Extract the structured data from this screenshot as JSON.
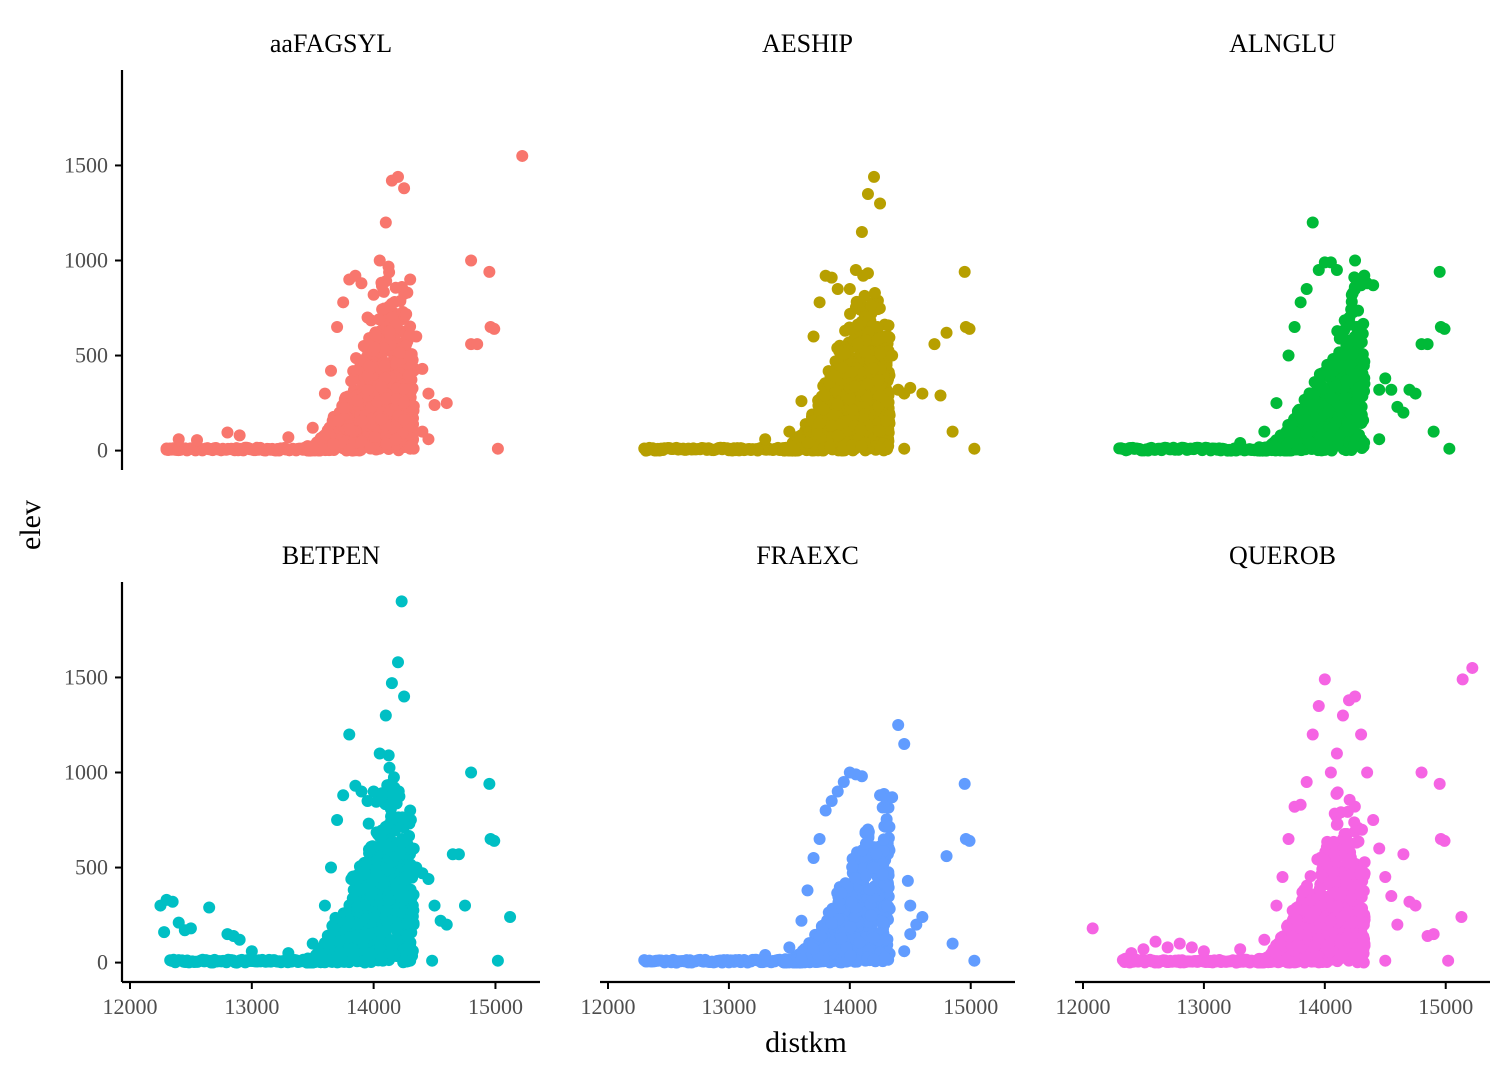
{
  "chart_data": {
    "type": "scatter",
    "xlabel": "distkm",
    "ylabel": "elev",
    "xlim": [
      12000,
      15300
    ],
    "ylim": [
      -60,
      1960
    ],
    "x_ticks": [
      12000,
      13000,
      14000,
      15000
    ],
    "y_ticks": [
      0,
      500,
      1000,
      1500
    ],
    "grid": false,
    "legend": "none",
    "facets": [
      {
        "name": "aaFAGSYL",
        "color": "#F8766D",
        "points": [
          [
            12300,
            5
          ],
          [
            12400,
            60
          ],
          [
            12550,
            55
          ],
          [
            12800,
            95
          ],
          [
            12900,
            80
          ],
          [
            13300,
            70
          ],
          [
            13500,
            120
          ],
          [
            13600,
            300
          ],
          [
            13650,
            420
          ],
          [
            13700,
            650
          ],
          [
            13750,
            780
          ],
          [
            13800,
            900
          ],
          [
            13850,
            920
          ],
          [
            13900,
            880
          ],
          [
            13950,
            700
          ],
          [
            14000,
            820
          ],
          [
            14050,
            1000
          ],
          [
            14100,
            1200
          ],
          [
            14150,
            1420
          ],
          [
            14200,
            1440
          ],
          [
            14250,
            1380
          ],
          [
            14300,
            900
          ],
          [
            14350,
            600
          ],
          [
            14400,
            430
          ],
          [
            14450,
            300
          ],
          [
            14500,
            240
          ],
          [
            14600,
            250
          ],
          [
            14400,
            100
          ],
          [
            14300,
            10
          ],
          [
            14450,
            60
          ],
          [
            14800,
            560
          ],
          [
            14850,
            560
          ],
          [
            14800,
            1000
          ],
          [
            14950,
            940
          ],
          [
            14960,
            650
          ],
          [
            14990,
            640
          ],
          [
            15020,
            10
          ],
          [
            15220,
            1550
          ]
        ]
      },
      {
        "name": "AESHIP",
        "color": "#B79F00",
        "points": [
          [
            13300,
            60
          ],
          [
            13500,
            100
          ],
          [
            13600,
            260
          ],
          [
            13700,
            600
          ],
          [
            13750,
            780
          ],
          [
            13800,
            920
          ],
          [
            13850,
            910
          ],
          [
            13900,
            850
          ],
          [
            14000,
            850
          ],
          [
            14050,
            950
          ],
          [
            14100,
            1150
          ],
          [
            14150,
            1350
          ],
          [
            14200,
            1440
          ],
          [
            14250,
            1300
          ],
          [
            14300,
            600
          ],
          [
            14350,
            500
          ],
          [
            14400,
            320
          ],
          [
            14450,
            300
          ],
          [
            14500,
            330
          ],
          [
            14600,
            300
          ],
          [
            14700,
            560
          ],
          [
            14750,
            290
          ],
          [
            14800,
            620
          ],
          [
            14850,
            100
          ],
          [
            14950,
            940
          ],
          [
            14960,
            650
          ],
          [
            14990,
            640
          ],
          [
            14250,
            10
          ],
          [
            14450,
            10
          ],
          [
            15030,
            10
          ]
        ]
      },
      {
        "name": "ALNGLU",
        "color": "#00BA38",
        "points": [
          [
            13300,
            40
          ],
          [
            13500,
            100
          ],
          [
            13600,
            250
          ],
          [
            13700,
            500
          ],
          [
            13750,
            650
          ],
          [
            13800,
            780
          ],
          [
            13850,
            850
          ],
          [
            13900,
            1200
          ],
          [
            13950,
            950
          ],
          [
            14000,
            990
          ],
          [
            14050,
            990
          ],
          [
            14100,
            950
          ],
          [
            14150,
            600
          ],
          [
            14200,
            450
          ],
          [
            14250,
            1000
          ],
          [
            14300,
            870
          ],
          [
            14350,
            880
          ],
          [
            14400,
            870
          ],
          [
            14450,
            320
          ],
          [
            14500,
            380
          ],
          [
            14550,
            320
          ],
          [
            14600,
            230
          ],
          [
            14650,
            200
          ],
          [
            14700,
            320
          ],
          [
            14750,
            300
          ],
          [
            14800,
            560
          ],
          [
            14850,
            560
          ],
          [
            14900,
            100
          ],
          [
            14950,
            940
          ],
          [
            14960,
            650
          ],
          [
            14990,
            640
          ],
          [
            14450,
            60
          ],
          [
            15030,
            10
          ]
        ]
      },
      {
        "name": "BETPEN",
        "color": "#00BFC4",
        "points": [
          [
            12250,
            300
          ],
          [
            12300,
            330
          ],
          [
            12350,
            320
          ],
          [
            12280,
            160
          ],
          [
            12400,
            210
          ],
          [
            12450,
            170
          ],
          [
            12500,
            180
          ],
          [
            12650,
            290
          ],
          [
            12800,
            150
          ],
          [
            12850,
            140
          ],
          [
            12900,
            120
          ],
          [
            13000,
            60
          ],
          [
            13300,
            50
          ],
          [
            13500,
            100
          ],
          [
            13600,
            300
          ],
          [
            13650,
            500
          ],
          [
            13700,
            750
          ],
          [
            13750,
            880
          ],
          [
            13800,
            1200
          ],
          [
            13850,
            930
          ],
          [
            13900,
            900
          ],
          [
            13950,
            850
          ],
          [
            14000,
            900
          ],
          [
            14050,
            1100
          ],
          [
            14100,
            1300
          ],
          [
            14150,
            1470
          ],
          [
            14200,
            1580
          ],
          [
            14230,
            1900
          ],
          [
            14250,
            1400
          ],
          [
            14300,
            800
          ],
          [
            14350,
            500
          ],
          [
            14400,
            470
          ],
          [
            14450,
            440
          ],
          [
            14500,
            300
          ],
          [
            14550,
            220
          ],
          [
            14600,
            200
          ],
          [
            14650,
            570
          ],
          [
            14700,
            570
          ],
          [
            14750,
            300
          ],
          [
            14800,
            1000
          ],
          [
            14950,
            940
          ],
          [
            14960,
            650
          ],
          [
            14990,
            640
          ],
          [
            14300,
            10
          ],
          [
            14480,
            10
          ],
          [
            15020,
            10
          ],
          [
            15120,
            240
          ]
        ]
      },
      {
        "name": "FRAEXC",
        "color": "#619CFF",
        "points": [
          [
            13300,
            40
          ],
          [
            13500,
            80
          ],
          [
            13600,
            220
          ],
          [
            13650,
            380
          ],
          [
            13700,
            550
          ],
          [
            13750,
            650
          ],
          [
            13800,
            800
          ],
          [
            13850,
            850
          ],
          [
            13900,
            900
          ],
          [
            13950,
            950
          ],
          [
            14000,
            1000
          ],
          [
            14050,
            990
          ],
          [
            14100,
            980
          ],
          [
            14150,
            700
          ],
          [
            14200,
            500
          ],
          [
            14250,
            880
          ],
          [
            14300,
            860
          ],
          [
            14350,
            870
          ],
          [
            14400,
            1250
          ],
          [
            14450,
            1150
          ],
          [
            14480,
            430
          ],
          [
            14500,
            300
          ],
          [
            14550,
            200
          ],
          [
            14600,
            240
          ],
          [
            14450,
            60
          ],
          [
            14500,
            150
          ],
          [
            14800,
            560
          ],
          [
            14850,
            100
          ],
          [
            14950,
            940
          ],
          [
            14960,
            650
          ],
          [
            14990,
            640
          ],
          [
            15030,
            10
          ]
        ]
      },
      {
        "name": "QUEROB",
        "color": "#F564E3",
        "points": [
          [
            12080,
            180
          ],
          [
            12350,
            20
          ],
          [
            12400,
            50
          ],
          [
            12500,
            70
          ],
          [
            12600,
            110
          ],
          [
            12700,
            80
          ],
          [
            12800,
            100
          ],
          [
            12900,
            80
          ],
          [
            13000,
            60
          ],
          [
            13300,
            70
          ],
          [
            13500,
            120
          ],
          [
            13600,
            300
          ],
          [
            13650,
            450
          ],
          [
            13700,
            650
          ],
          [
            13750,
            820
          ],
          [
            13800,
            830
          ],
          [
            13850,
            950
          ],
          [
            13900,
            1200
          ],
          [
            13950,
            1350
          ],
          [
            14000,
            1490
          ],
          [
            14050,
            1000
          ],
          [
            14100,
            1100
          ],
          [
            14150,
            1300
          ],
          [
            14200,
            1380
          ],
          [
            14250,
            1400
          ],
          [
            14300,
            1200
          ],
          [
            14350,
            1000
          ],
          [
            14400,
            750
          ],
          [
            14450,
            600
          ],
          [
            14500,
            450
          ],
          [
            14550,
            350
          ],
          [
            14600,
            200
          ],
          [
            14650,
            570
          ],
          [
            14700,
            320
          ],
          [
            14750,
            300
          ],
          [
            14800,
            1000
          ],
          [
            14850,
            140
          ],
          [
            14900,
            150
          ],
          [
            14950,
            940
          ],
          [
            14960,
            650
          ],
          [
            14990,
            640
          ],
          [
            15130,
            240
          ],
          [
            15140,
            1490
          ],
          [
            15220,
            1550
          ],
          [
            14300,
            10
          ],
          [
            14500,
            10
          ],
          [
            15020,
            10
          ]
        ]
      }
    ]
  }
}
